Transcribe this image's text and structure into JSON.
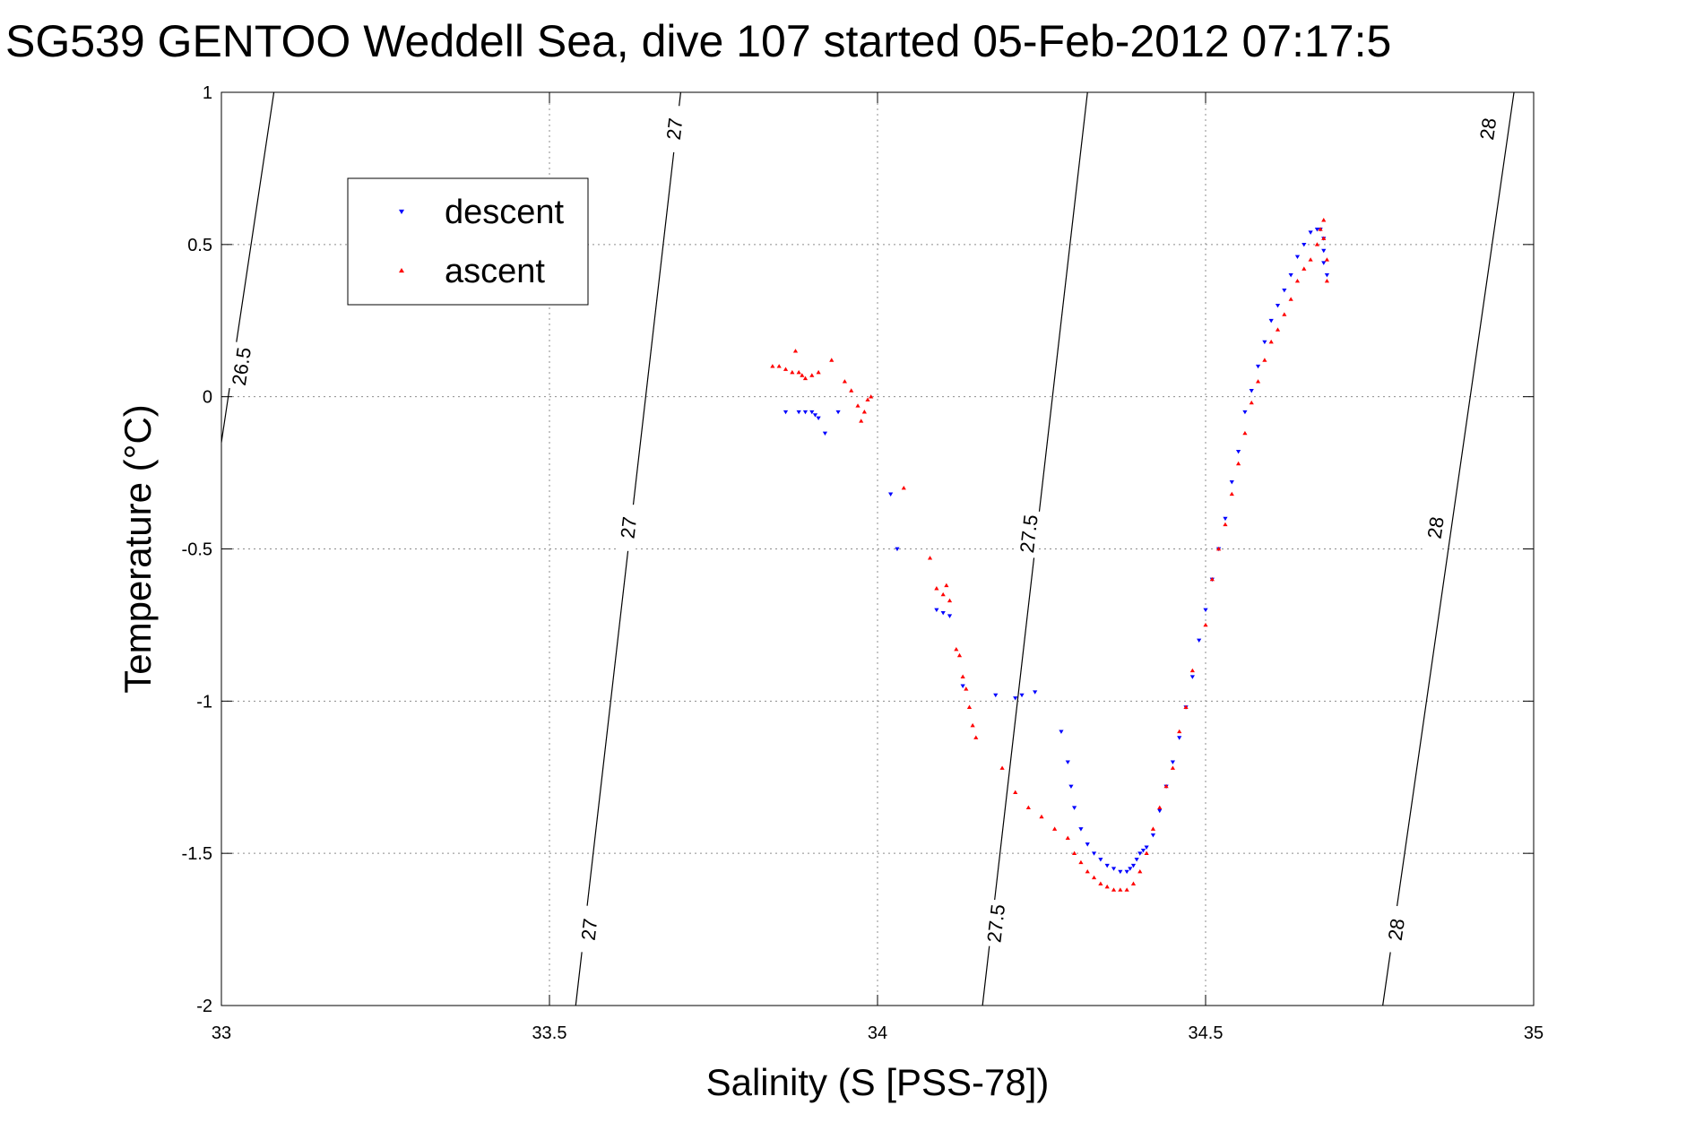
{
  "chart_data": {
    "type": "scatter",
    "title": "SG539 GENTOO Weddell Sea, dive 107 started 05-Feb-2012 07:17:5",
    "xlabel": "Salinity (S [PSS-78])",
    "ylabel": "Temperature (°C)",
    "xlim": [
      33,
      35
    ],
    "ylim": [
      -2,
      1
    ],
    "xticks": [
      33,
      33.5,
      34,
      34.5,
      35
    ],
    "xtick_labels": [
      "33",
      "33.5",
      "34",
      "34.5",
      "35"
    ],
    "yticks": [
      -2,
      -1.5,
      -1,
      -0.5,
      0,
      0.5,
      1
    ],
    "ytick_labels": [
      "-2",
      "-1.5",
      "-1",
      "-0.5",
      "0",
      "0.5",
      "1"
    ],
    "grid": true,
    "legend_position": "top-left",
    "contours": [
      {
        "label": "26.5",
        "points": [
          [
            33.0,
            -0.15
          ],
          [
            33.08,
            1.0
          ]
        ],
        "labels_at": [
          [
            33.03,
            0.1
          ]
        ]
      },
      {
        "label": "27",
        "points": [
          [
            33.54,
            -2.0
          ],
          [
            33.7,
            1.0
          ]
        ],
        "labels_at": [
          [
            33.56,
            -1.75
          ],
          [
            33.62,
            -0.43
          ],
          [
            33.69,
            0.88
          ]
        ]
      },
      {
        "label": "27.5",
        "points": [
          [
            34.16,
            -2.0
          ],
          [
            34.32,
            1.0
          ]
        ],
        "labels_at": [
          [
            34.18,
            -1.73
          ],
          [
            34.23,
            -0.45
          ]
        ]
      },
      {
        "label": "28",
        "points": [
          [
            34.77,
            -2.0
          ],
          [
            34.97,
            1.0
          ]
        ],
        "labels_at": [
          [
            34.79,
            -1.75
          ],
          [
            34.85,
            -0.43
          ],
          [
            34.93,
            0.88
          ]
        ]
      }
    ],
    "series": [
      {
        "name": "descent",
        "color": "#0000ff",
        "marker": "triangle-down",
        "x": [
          33.86,
          33.88,
          33.89,
          33.9,
          33.905,
          33.91,
          33.92,
          33.94,
          34.02,
          34.03,
          34.09,
          34.1,
          34.11,
          34.13,
          34.18,
          34.21,
          34.22,
          34.24,
          34.28,
          34.29,
          34.295,
          34.3,
          34.31,
          34.32,
          34.33,
          34.34,
          34.35,
          34.36,
          34.37,
          34.38,
          34.385,
          34.39,
          34.395,
          34.4,
          34.405,
          34.41,
          34.42,
          34.43,
          34.44,
          34.45,
          34.46,
          34.47,
          34.48,
          34.49,
          34.5,
          34.51,
          34.52,
          34.53,
          34.54,
          34.55,
          34.56,
          34.57,
          34.58,
          34.59,
          34.6,
          34.61,
          34.62,
          34.63,
          34.64,
          34.65,
          34.66,
          34.67,
          34.675,
          34.68,
          34.68,
          34.68,
          34.685
        ],
        "y": [
          -0.05,
          -0.05,
          -0.05,
          -0.05,
          -0.06,
          -0.07,
          -0.12,
          -0.05,
          -0.32,
          -0.5,
          -0.7,
          -0.71,
          -0.72,
          -0.95,
          -0.98,
          -0.99,
          -0.98,
          -0.97,
          -1.1,
          -1.2,
          -1.28,
          -1.35,
          -1.42,
          -1.47,
          -1.5,
          -1.52,
          -1.54,
          -1.55,
          -1.56,
          -1.56,
          -1.55,
          -1.54,
          -1.52,
          -1.5,
          -1.49,
          -1.48,
          -1.44,
          -1.36,
          -1.28,
          -1.2,
          -1.12,
          -1.02,
          -0.92,
          -0.8,
          -0.7,
          -0.6,
          -0.5,
          -0.4,
          -0.28,
          -0.18,
          -0.05,
          0.02,
          0.1,
          0.18,
          0.25,
          0.3,
          0.35,
          0.4,
          0.46,
          0.5,
          0.54,
          0.55,
          0.55,
          0.52,
          0.48,
          0.44,
          0.4
        ]
      },
      {
        "name": "ascent",
        "color": "#ff0000",
        "marker": "triangle-up",
        "x": [
          33.84,
          33.85,
          33.86,
          33.87,
          33.875,
          33.88,
          33.885,
          33.89,
          33.9,
          33.91,
          33.93,
          33.95,
          33.96,
          33.97,
          33.975,
          33.98,
          33.985,
          33.99,
          34.04,
          34.08,
          34.09,
          34.1,
          34.105,
          34.11,
          34.12,
          34.125,
          34.13,
          34.135,
          34.14,
          34.145,
          34.15,
          34.19,
          34.21,
          34.23,
          34.25,
          34.27,
          34.29,
          34.3,
          34.31,
          34.32,
          34.33,
          34.34,
          34.35,
          34.36,
          34.37,
          34.38,
          34.39,
          34.4,
          34.41,
          34.42,
          34.43,
          34.44,
          34.45,
          34.46,
          34.47,
          34.48,
          34.5,
          34.51,
          34.52,
          34.53,
          34.54,
          34.55,
          34.56,
          34.57,
          34.58,
          34.59,
          34.6,
          34.61,
          34.62,
          34.63,
          34.64,
          34.65,
          34.66,
          34.67,
          34.675,
          34.68,
          34.68,
          34.685,
          34.685
        ],
        "y": [
          0.1,
          0.1,
          0.09,
          0.08,
          0.15,
          0.08,
          0.07,
          0.06,
          0.07,
          0.08,
          0.12,
          0.05,
          0.02,
          -0.03,
          -0.08,
          -0.05,
          -0.01,
          0.0,
          -0.3,
          -0.53,
          -0.63,
          -0.65,
          -0.62,
          -0.67,
          -0.83,
          -0.85,
          -0.92,
          -0.96,
          -1.02,
          -1.08,
          -1.12,
          -1.22,
          -1.3,
          -1.35,
          -1.38,
          -1.42,
          -1.45,
          -1.5,
          -1.53,
          -1.56,
          -1.58,
          -1.6,
          -1.61,
          -1.62,
          -1.62,
          -1.62,
          -1.6,
          -1.56,
          -1.5,
          -1.42,
          -1.35,
          -1.28,
          -1.22,
          -1.1,
          -1.02,
          -0.9,
          -0.75,
          -0.6,
          -0.5,
          -0.42,
          -0.32,
          -0.22,
          -0.12,
          -0.02,
          0.05,
          0.12,
          0.18,
          0.22,
          0.27,
          0.32,
          0.38,
          0.42,
          0.45,
          0.5,
          0.55,
          0.58,
          0.52,
          0.45,
          0.38
        ]
      }
    ]
  }
}
